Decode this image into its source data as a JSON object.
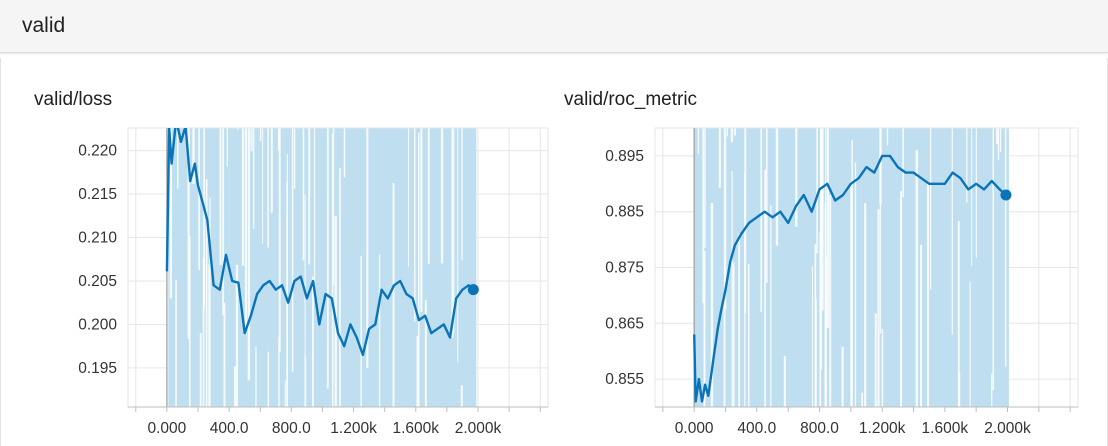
{
  "header": {
    "title": "valid"
  },
  "chart_data": [
    {
      "type": "line",
      "title": "valid/loss",
      "xlabel": "",
      "ylabel": "",
      "xlim": [
        -250,
        2450
      ],
      "ylim": [
        0.1905,
        0.2226
      ],
      "x_ticks": [
        0,
        400,
        800,
        1200,
        1600,
        2000
      ],
      "x_tick_labels": [
        "0.000",
        "400.0",
        "800.0",
        "1.200k",
        "1.600k",
        "2.000k"
      ],
      "y_ticks": [
        0.195,
        0.2,
        0.205,
        0.21,
        0.215,
        0.22
      ],
      "y_tick_labels": [
        "0.195",
        "0.200",
        "0.205",
        "0.210",
        "0.215",
        "0.220"
      ],
      "grid": true,
      "colors": {
        "line": "#0a74b8",
        "band": "#bfdff0",
        "axis": "#9e9e9e",
        "grid": "#e6e6e6"
      },
      "series": [
        {
          "x": [
            0,
            15,
            30,
            60,
            90,
            120,
            150,
            180,
            200,
            230,
            260,
            300,
            340,
            380,
            420,
            460,
            500,
            540,
            580,
            620,
            660,
            700,
            740,
            780,
            820,
            860,
            900,
            940,
            980,
            1020,
            1060,
            1100,
            1140,
            1180,
            1220,
            1260,
            1300,
            1340,
            1380,
            1420,
            1460,
            1500,
            1540,
            1580,
            1620,
            1660,
            1700,
            1740,
            1780,
            1820,
            1860,
            1900,
            1940,
            1970
          ],
          "y": [
            0.2061,
            0.2226,
            0.2185,
            0.2236,
            0.221,
            0.2228,
            0.2165,
            0.2185,
            0.216,
            0.214,
            0.212,
            0.2045,
            0.204,
            0.208,
            0.205,
            0.2048,
            0.199,
            0.201,
            0.2035,
            0.2045,
            0.205,
            0.204,
            0.2045,
            0.2025,
            0.205,
            0.2055,
            0.203,
            0.205,
            0.2,
            0.2035,
            0.203,
            0.199,
            0.1975,
            0.2,
            0.1985,
            0.1965,
            0.1995,
            0.2,
            0.204,
            0.203,
            0.2045,
            0.205,
            0.2035,
            0.203,
            0.2005,
            0.201,
            0.199,
            0.1995,
            0.2,
            0.1985,
            0.203,
            0.204,
            0.2045,
            0.204
          ]
        }
      ]
    },
    {
      "type": "line",
      "title": "valid/roc_metric",
      "xlabel": "",
      "ylabel": "",
      "xlim": [
        -250,
        2450
      ],
      "ylim": [
        0.85,
        0.9
      ],
      "x_ticks": [
        0,
        400,
        800,
        1200,
        1600,
        2000
      ],
      "x_tick_labels": [
        "0.000",
        "400.0",
        "800.0",
        "1.200k",
        "1.600k",
        "2.000k"
      ],
      "y_ticks": [
        0.855,
        0.865,
        0.875,
        0.885,
        0.895
      ],
      "y_tick_labels": [
        "0.855",
        "0.865",
        "0.875",
        "0.885",
        "0.895"
      ],
      "grid": true,
      "colors": {
        "line": "#0a74b8",
        "band": "#bfdff0",
        "axis": "#9e9e9e",
        "grid": "#e6e6e6"
      },
      "series": [
        {
          "x": [
            0,
            10,
            30,
            50,
            70,
            90,
            110,
            130,
            150,
            170,
            200,
            230,
            260,
            300,
            350,
            400,
            450,
            500,
            550,
            600,
            650,
            700,
            750,
            800,
            850,
            900,
            950,
            1000,
            1050,
            1100,
            1150,
            1200,
            1250,
            1300,
            1350,
            1400,
            1450,
            1500,
            1550,
            1600,
            1650,
            1700,
            1750,
            1800,
            1850,
            1900,
            1950,
            1990
          ],
          "y": [
            0.863,
            0.851,
            0.855,
            0.851,
            0.854,
            0.852,
            0.856,
            0.86,
            0.864,
            0.867,
            0.871,
            0.876,
            0.879,
            0.881,
            0.883,
            0.884,
            0.885,
            0.884,
            0.885,
            0.883,
            0.886,
            0.888,
            0.885,
            0.889,
            0.89,
            0.887,
            0.888,
            0.89,
            0.891,
            0.893,
            0.892,
            0.895,
            0.895,
            0.893,
            0.892,
            0.892,
            0.891,
            0.89,
            0.89,
            0.89,
            0.892,
            0.891,
            0.889,
            0.89,
            0.889,
            0.8905,
            0.889,
            0.888
          ]
        }
      ]
    }
  ]
}
